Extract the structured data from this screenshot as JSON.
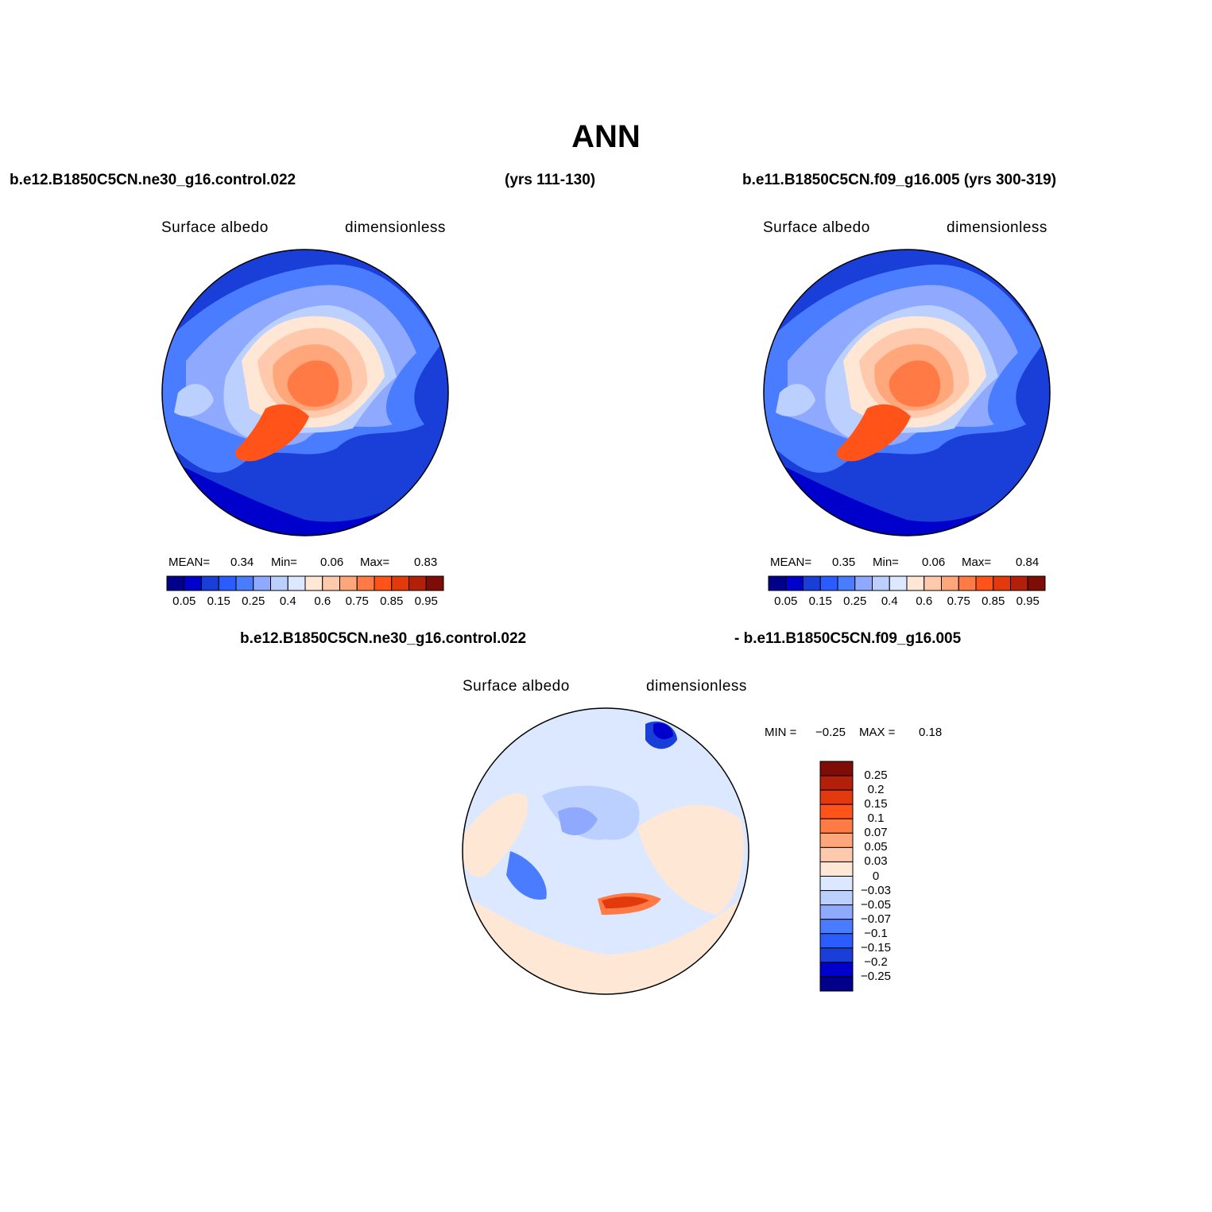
{
  "title": "ANN",
  "case1": "b.e12.B1850C5CN.ne30_g16.control.022",
  "case1_years": "(yrs 111-130)",
  "case2": "b.e11.B1850C5CN.f09_g16.005 (yrs 300-319)",
  "diff_case_a": "b.e12.B1850C5CN.ne30_g16.control.022",
  "diff_case_b": "- b.e11.B1850C5CN.f09_g16.005",
  "variable": "Surface albedo",
  "units": "dimensionless",
  "panel1": {
    "mean_label": "MEAN=",
    "mean_value": "0.34",
    "min_label": "Min=",
    "min_value": "0.06",
    "max_label": "Max=",
    "max_value": "0.83"
  },
  "panel2": {
    "mean_label": "MEAN=",
    "mean_value": "0.35",
    "min_label": "Min=",
    "min_value": "0.06",
    "max_label": "Max=",
    "max_value": "0.84"
  },
  "diff_stats": {
    "min_label": "MIN =",
    "min_value": "−0.25",
    "max_label": "MAX =",
    "max_value": "0.18"
  },
  "colorbar_ticks": [
    "0.05",
    "0.15",
    "0.25",
    "0.4",
    "0.6",
    "0.75",
    "0.85",
    "0.95"
  ],
  "colorbar_colors": [
    "#00008b",
    "#0000cd",
    "#1a3fd8",
    "#2b5cff",
    "#4a7cff",
    "#8fa9ff",
    "#bcd0ff",
    "#dbe8ff",
    "#ffe7d6",
    "#ffc9ad",
    "#ffa67a",
    "#ff7a45",
    "#ff531a",
    "#e23a0c",
    "#b3200a",
    "#7e0d08"
  ],
  "diff_colorbar_labels": [
    "0.25",
    "0.2",
    "0.15",
    "0.1",
    "0.07",
    "0.05",
    "0.03",
    "0",
    "−0.03",
    "−0.05",
    "−0.07",
    "−0.1",
    "−0.15",
    "−0.2",
    "−0.25"
  ],
  "diff_colorbar_colors": [
    "#7e0d08",
    "#b3200a",
    "#e23a0c",
    "#ff531a",
    "#ff7a45",
    "#ffa67a",
    "#ffc9ad",
    "#ffe7d6",
    "#dbe8ff",
    "#bcd0ff",
    "#8fa9ff",
    "#4a7cff",
    "#2b5cff",
    "#1a3fd8",
    "#0000cd",
    "#00008b"
  ]
}
